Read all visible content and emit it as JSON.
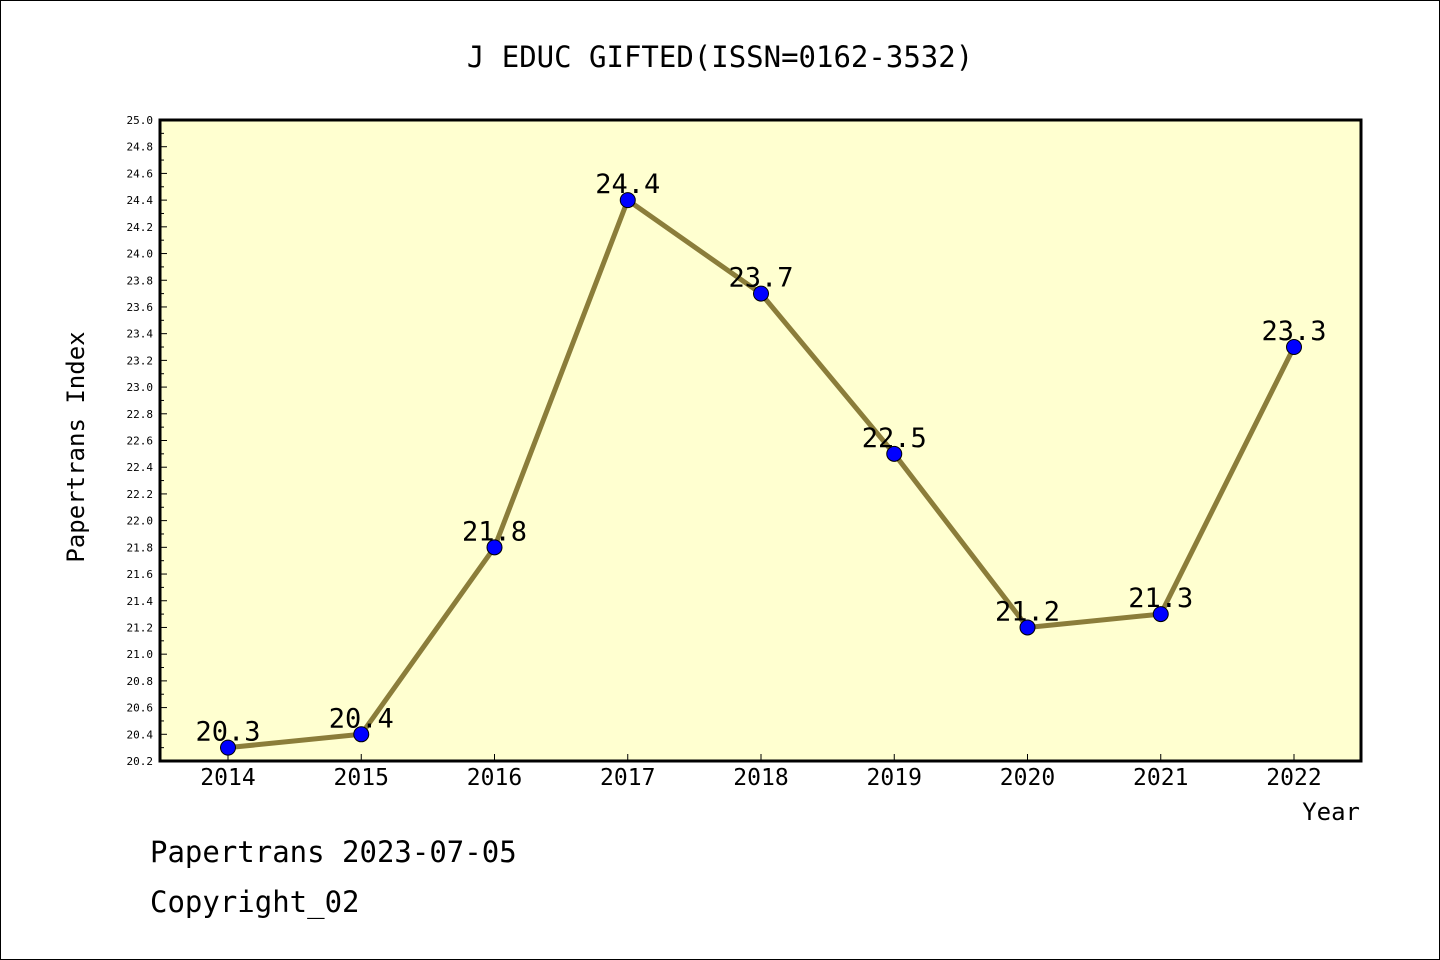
{
  "chart_data": {
    "type": "line",
    "title": "J EDUC GIFTED(ISSN=0162-3532)",
    "xlabel": "Year",
    "ylabel": "Papertrans Index",
    "categories": [
      "2014",
      "2015",
      "2016",
      "2017",
      "2018",
      "2019",
      "2020",
      "2021",
      "2022"
    ],
    "series": [
      {
        "values": [
          20.3,
          20.4,
          21.8,
          24.4,
          23.7,
          22.5,
          21.2,
          21.3,
          23.3
        ]
      }
    ],
    "data_labels": [
      "20.3",
      "20.4",
      "21.8",
      "24.4",
      "23.7",
      "22.5",
      "21.2",
      "21.3",
      "23.3"
    ],
    "ylim": [
      20.2,
      25.0
    ],
    "yticks": [
      "20.2",
      "20.4",
      "20.6",
      "20.8",
      "21.0",
      "21.2",
      "21.4",
      "21.6",
      "21.8",
      "22.0",
      "22.2",
      "22.4",
      "22.6",
      "22.8",
      "23.0",
      "23.2",
      "23.4",
      "23.6",
      "23.8",
      "24.0",
      "24.2",
      "24.4",
      "24.6",
      "24.8",
      "25.0"
    ],
    "grid": false,
    "colors": {
      "plot_background": "#ffffd0",
      "line": "#8b7d3a",
      "marker": "#0000ff"
    }
  },
  "footer": {
    "line1": "Papertrans 2023-07-05",
    "line2": "Copyright_02"
  }
}
